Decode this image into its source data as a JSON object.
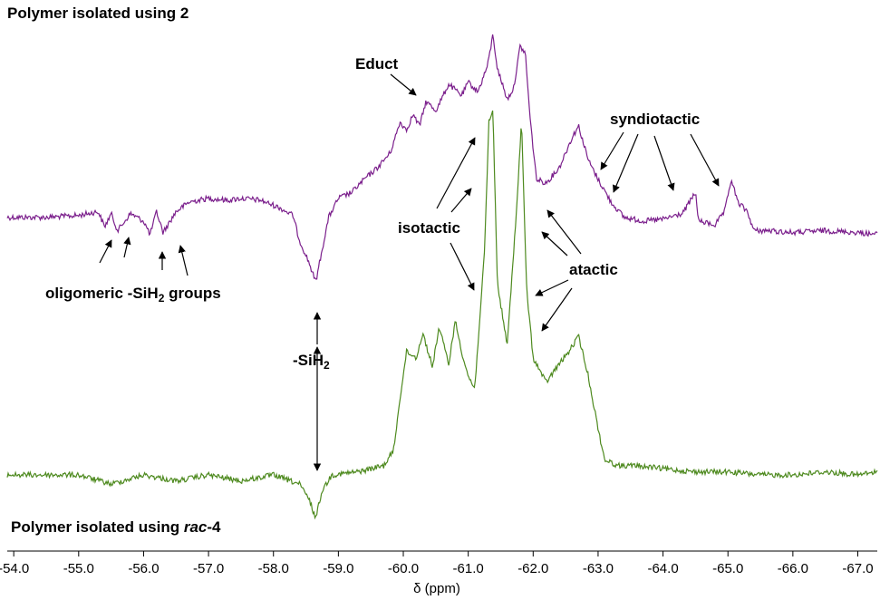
{
  "chart_data": {
    "type": "line",
    "title": "",
    "xlabel": "δ (ppm)",
    "ylabel": "",
    "xlim": [
      -53.9,
      -67.3
    ],
    "x_reversed": true,
    "ticks": [
      "-54.0",
      "-55.0",
      "-56.0",
      "-57.0",
      "-58.0",
      "-59.0",
      "-60.0",
      "-61.0",
      "-62.0",
      "-63.0",
      "-64.0",
      "-65.0",
      "-66.0",
      "-67.0"
    ],
    "grid": false,
    "colors": {
      "top": "#7B1F8C",
      "bottom": "#4E8A1F"
    },
    "series": [
      {
        "name": "Polymer isolated using 2",
        "color": "#7B1F8C",
        "points": [
          [
            -53.9,
            0.02
          ],
          [
            -54.5,
            0.02
          ],
          [
            -55.0,
            0.03
          ],
          [
            -55.3,
            0.05
          ],
          [
            -55.4,
            -0.03
          ],
          [
            -55.5,
            0.04
          ],
          [
            -55.6,
            -0.05
          ],
          [
            -55.8,
            0.04
          ],
          [
            -56.0,
            0.0
          ],
          [
            -56.1,
            -0.07
          ],
          [
            -56.2,
            0.05
          ],
          [
            -56.3,
            -0.06
          ],
          [
            -56.5,
            0.05
          ],
          [
            -56.7,
            0.1
          ],
          [
            -57.0,
            0.12
          ],
          [
            -57.3,
            0.11
          ],
          [
            -57.5,
            0.12
          ],
          [
            -57.8,
            0.11
          ],
          [
            -58.1,
            0.07
          ],
          [
            -58.3,
            0.03
          ],
          [
            -58.4,
            -0.1
          ],
          [
            -58.55,
            -0.22
          ],
          [
            -58.65,
            -0.32
          ],
          [
            -58.75,
            -0.15
          ],
          [
            -58.85,
            0.02
          ],
          [
            -59.0,
            0.12
          ],
          [
            -59.2,
            0.15
          ],
          [
            -59.4,
            0.22
          ],
          [
            -59.6,
            0.28
          ],
          [
            -59.8,
            0.36
          ],
          [
            -59.95,
            0.52
          ],
          [
            -60.05,
            0.48
          ],
          [
            -60.15,
            0.56
          ],
          [
            -60.25,
            0.5
          ],
          [
            -60.35,
            0.63
          ],
          [
            -60.5,
            0.58
          ],
          [
            -60.7,
            0.72
          ],
          [
            -60.9,
            0.66
          ],
          [
            -61.0,
            0.73
          ],
          [
            -61.15,
            0.68
          ],
          [
            -61.3,
            0.82
          ],
          [
            -61.38,
            0.98
          ],
          [
            -61.45,
            0.8
          ],
          [
            -61.6,
            0.64
          ],
          [
            -61.7,
            0.7
          ],
          [
            -61.8,
            0.92
          ],
          [
            -61.88,
            0.88
          ],
          [
            -61.95,
            0.55
          ],
          [
            -62.05,
            0.22
          ],
          [
            -62.2,
            0.2
          ],
          [
            -62.4,
            0.28
          ],
          [
            -62.6,
            0.44
          ],
          [
            -62.7,
            0.5
          ],
          [
            -62.85,
            0.32
          ],
          [
            -63.0,
            0.22
          ],
          [
            -63.2,
            0.1
          ],
          [
            -63.4,
            0.02
          ],
          [
            -63.7,
            0.0
          ],
          [
            -64.0,
            0.01
          ],
          [
            -64.3,
            0.04
          ],
          [
            -64.5,
            0.15
          ],
          [
            -64.55,
            0.0
          ],
          [
            -64.8,
            -0.02
          ],
          [
            -64.95,
            0.05
          ],
          [
            -65.05,
            0.22
          ],
          [
            -65.15,
            0.1
          ],
          [
            -65.3,
            0.05
          ],
          [
            -65.4,
            -0.05
          ],
          [
            -65.6,
            -0.05
          ],
          [
            -66.0,
            -0.06
          ],
          [
            -66.5,
            -0.05
          ],
          [
            -67.0,
            -0.06
          ],
          [
            -67.3,
            -0.07
          ]
        ]
      },
      {
        "name": "Polymer isolated using rac-4",
        "color": "#4E8A1F",
        "points": [
          [
            -53.9,
            0.0
          ],
          [
            -55.0,
            0.0
          ],
          [
            -55.5,
            -0.03
          ],
          [
            -56.0,
            0.0
          ],
          [
            -56.5,
            -0.02
          ],
          [
            -57.0,
            0.0
          ],
          [
            -57.5,
            -0.02
          ],
          [
            -58.0,
            0.0
          ],
          [
            -58.4,
            -0.03
          ],
          [
            -58.55,
            -0.08
          ],
          [
            -58.65,
            -0.14
          ],
          [
            -58.75,
            -0.05
          ],
          [
            -58.9,
            0.0
          ],
          [
            -59.3,
            0.01
          ],
          [
            -59.7,
            0.03
          ],
          [
            -59.85,
            0.08
          ],
          [
            -59.95,
            0.25
          ],
          [
            -60.05,
            0.4
          ],
          [
            -60.2,
            0.38
          ],
          [
            -60.3,
            0.46
          ],
          [
            -60.45,
            0.35
          ],
          [
            -60.55,
            0.48
          ],
          [
            -60.7,
            0.36
          ],
          [
            -60.8,
            0.5
          ],
          [
            -60.9,
            0.4
          ],
          [
            -61.0,
            0.32
          ],
          [
            -61.1,
            0.28
          ],
          [
            -61.25,
            0.72
          ],
          [
            -61.32,
            1.15
          ],
          [
            -61.38,
            1.18
          ],
          [
            -61.45,
            0.62
          ],
          [
            -61.6,
            0.42
          ],
          [
            -61.75,
            0.88
          ],
          [
            -61.82,
            1.15
          ],
          [
            -61.9,
            0.6
          ],
          [
            -62.0,
            0.38
          ],
          [
            -62.2,
            0.3
          ],
          [
            -62.4,
            0.36
          ],
          [
            -62.55,
            0.4
          ],
          [
            -62.7,
            0.45
          ],
          [
            -62.85,
            0.32
          ],
          [
            -63.0,
            0.15
          ],
          [
            -63.1,
            0.05
          ],
          [
            -63.3,
            0.03
          ],
          [
            -63.6,
            0.03
          ],
          [
            -64.0,
            0.02
          ],
          [
            -64.5,
            0.01
          ],
          [
            -65.0,
            0.01
          ],
          [
            -65.5,
            0.0
          ],
          [
            -66.0,
            0.0
          ],
          [
            -66.5,
            0.01
          ],
          [
            -67.0,
            0.0
          ],
          [
            -67.3,
            0.01
          ]
        ]
      }
    ]
  },
  "labels": {
    "top_title": "Polymer isolated using 2",
    "bottom_title_main": "Polymer isolated using ",
    "bottom_title_italic": "rac",
    "bottom_title_suffix": "-4",
    "educt": "Educt",
    "syndiotactic": "syndiotactic",
    "isotactic": "isotactic",
    "atactic": "atactic",
    "oligomeric_pre": "oligomeric -SiH",
    "oligomeric_sub": "2",
    "oligomeric_post": " groups",
    "sih2_pre": "-SiH",
    "sih2_sub": "2"
  }
}
